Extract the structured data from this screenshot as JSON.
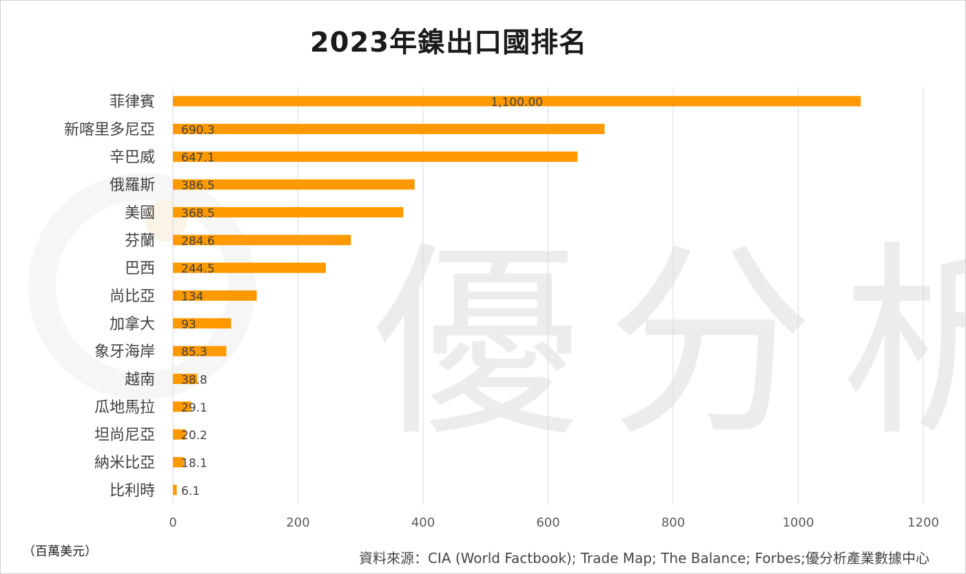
{
  "title": "2023年鎳出口國排名",
  "watermark": "優分析",
  "unit_label": "（百萬美元）",
  "source": "資料來源：CIA (World Factbook); Trade Map; The Balance; Forbes;優分析產業數據中心",
  "colors": {
    "bar": "#FF9900",
    "grid": "#d9d9d9",
    "text": "#404040"
  },
  "chart_data": {
    "type": "bar",
    "orientation": "horizontal",
    "title": "2023年鎳出口國排名",
    "categories": [
      "菲律賓",
      "新喀里多尼亞",
      "辛巴威",
      "俄羅斯",
      "美國",
      "芬蘭",
      "巴西",
      "尚比亞",
      "加拿大",
      "象牙海岸",
      "越南",
      "瓜地馬拉",
      "坦尚尼亞",
      "納米比亞",
      "比利時"
    ],
    "values": [
      1100,
      690.3,
      647.1,
      386.5,
      368.5,
      284.6,
      244.5,
      134,
      93,
      85.3,
      38.8,
      29.1,
      20.2,
      18.1,
      6.1
    ],
    "data_labels": [
      "1,100.00",
      "690.3",
      "647.1",
      "386.5",
      "368.5",
      "284.6",
      "244.5",
      "134",
      "93",
      "85.3",
      "38.8",
      "29.1",
      "20.2",
      "18.1",
      "6.1"
    ],
    "xlim": [
      0,
      1200
    ],
    "xticks": [
      0,
      200,
      400,
      600,
      800,
      1000,
      1200
    ],
    "xtick_labels": [
      "0",
      "200",
      "400",
      "600",
      "800",
      "1000",
      "1200"
    ],
    "grid": true,
    "legend": "none"
  }
}
